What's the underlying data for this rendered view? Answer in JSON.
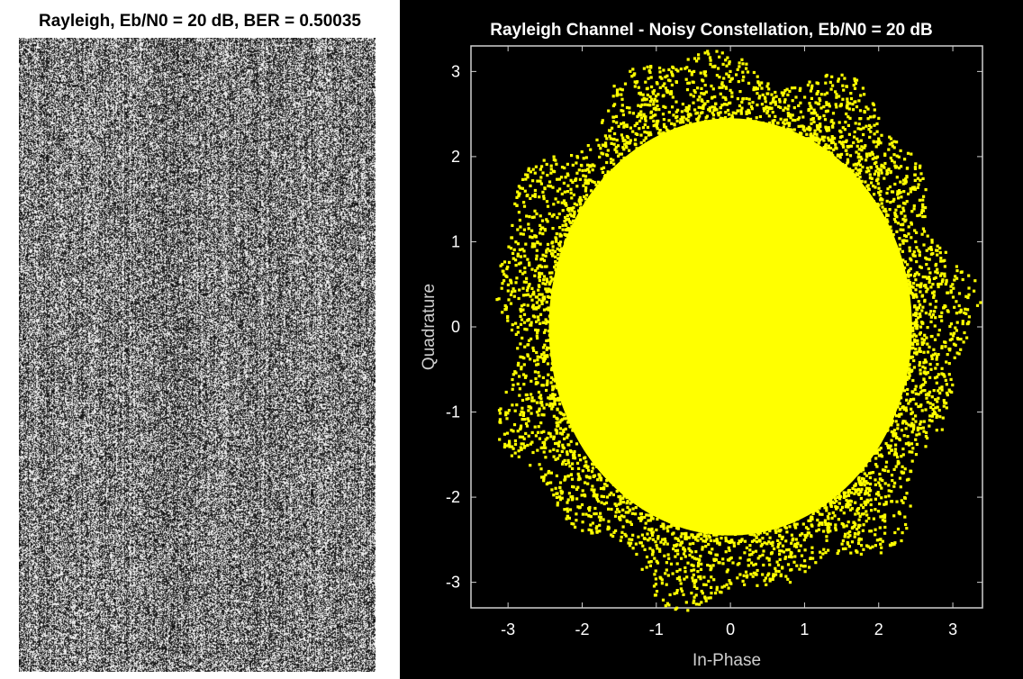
{
  "chart_data": [
    {
      "type": "image",
      "title": "Rayleigh, Eb/N0 = 20 dB, BER = 0.50035",
      "colormap": "grayscale",
      "content": "random noise pattern"
    },
    {
      "type": "scatter",
      "title": "Rayleigh Channel - Noisy Constellation, Eb/N0 = 20 dB",
      "xlabel": "In-Phase",
      "ylabel": "Quadrature",
      "xlim": [
        -3.5,
        3.4
      ],
      "ylim": [
        -3.3,
        3.3
      ],
      "xticks": [
        -3,
        -2,
        -1,
        0,
        1,
        2,
        3
      ],
      "yticks": [
        -3,
        -2,
        -1,
        0,
        1,
        2,
        3
      ],
      "grid": false,
      "background": "#000000",
      "point_color": "#ffff00",
      "cloud_center": [
        0,
        0
      ],
      "dense_radius": 2.45,
      "max_radius": 3.15
    }
  ]
}
